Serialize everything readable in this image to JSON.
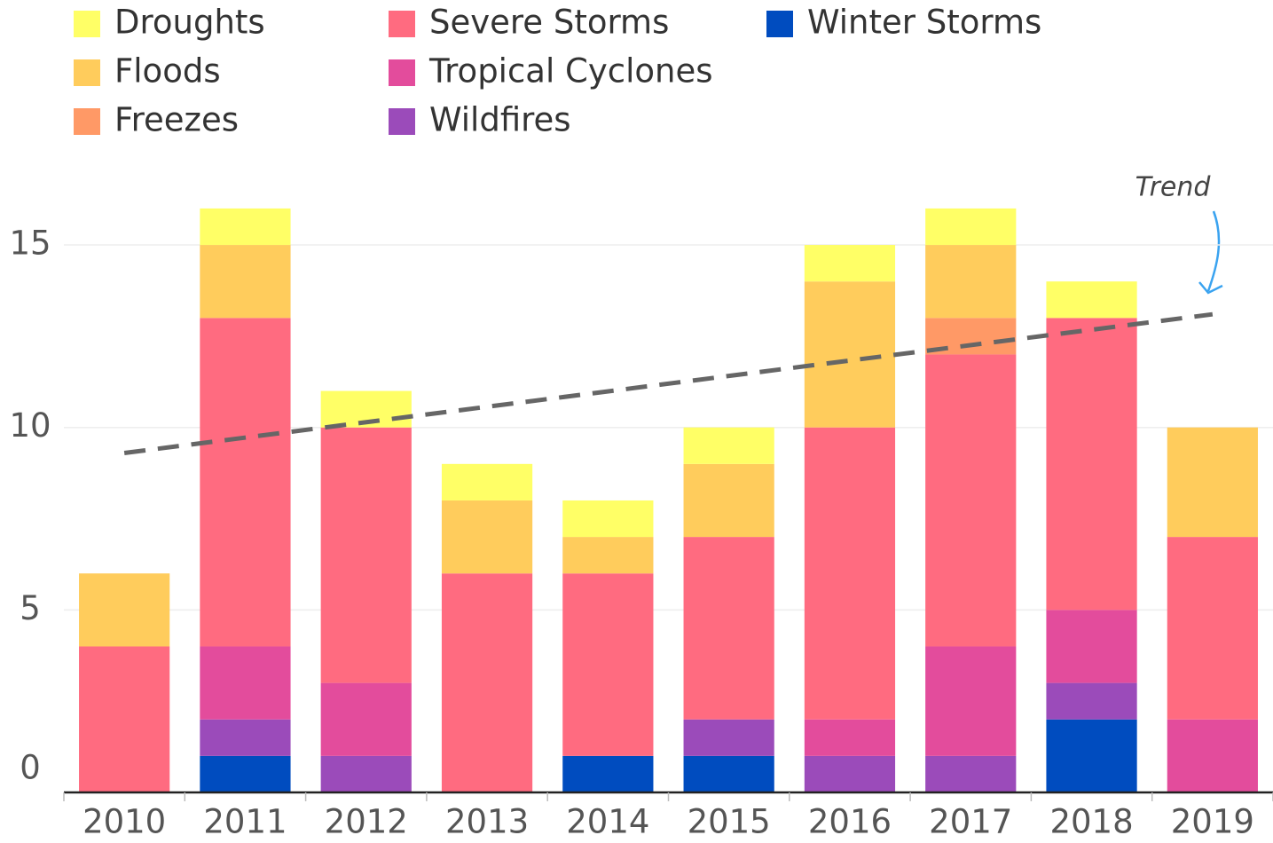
{
  "chart_data": {
    "type": "stacked_bar",
    "categories": [
      "2010",
      "2011",
      "2012",
      "2013",
      "2014",
      "2015",
      "2016",
      "2017",
      "2018",
      "2019"
    ],
    "series": [
      {
        "name": "Droughts",
        "color": "#ffff66",
        "values": [
          0,
          1,
          1,
          1,
          1,
          1,
          1,
          1,
          1,
          0
        ]
      },
      {
        "name": "Floods",
        "color": "#ffcc5c",
        "values": [
          2,
          2,
          0,
          2,
          1,
          2,
          4,
          2,
          0,
          3
        ]
      },
      {
        "name": "Freezes",
        "color": "#ff9966",
        "values": [
          0,
          0,
          0,
          0,
          0,
          0,
          0,
          1,
          0,
          0
        ]
      },
      {
        "name": "Severe Storms",
        "color": "#ff6b80",
        "values": [
          4,
          9,
          7,
          6,
          5,
          5,
          8,
          8,
          8,
          5
        ]
      },
      {
        "name": "Tropical Cyclones",
        "color": "#e34c9c",
        "values": [
          0,
          2,
          2,
          0,
          0,
          0,
          1,
          3,
          2,
          2
        ]
      },
      {
        "name": "Wildfires",
        "color": "#9b4bba",
        "values": [
          0,
          1,
          1,
          0,
          0,
          1,
          1,
          1,
          1,
          0
        ]
      },
      {
        "name": "Winter Storms",
        "color": "#004cbf",
        "values": [
          0,
          1,
          0,
          0,
          1,
          1,
          0,
          0,
          2,
          0
        ]
      }
    ],
    "trend": {
      "label": "Trend",
      "color": "#666666",
      "values": [
        9.3,
        13.1
      ]
    },
    "ylim": [
      0,
      17
    ],
    "yticks": [
      0,
      5,
      10,
      15
    ],
    "grid": true
  }
}
